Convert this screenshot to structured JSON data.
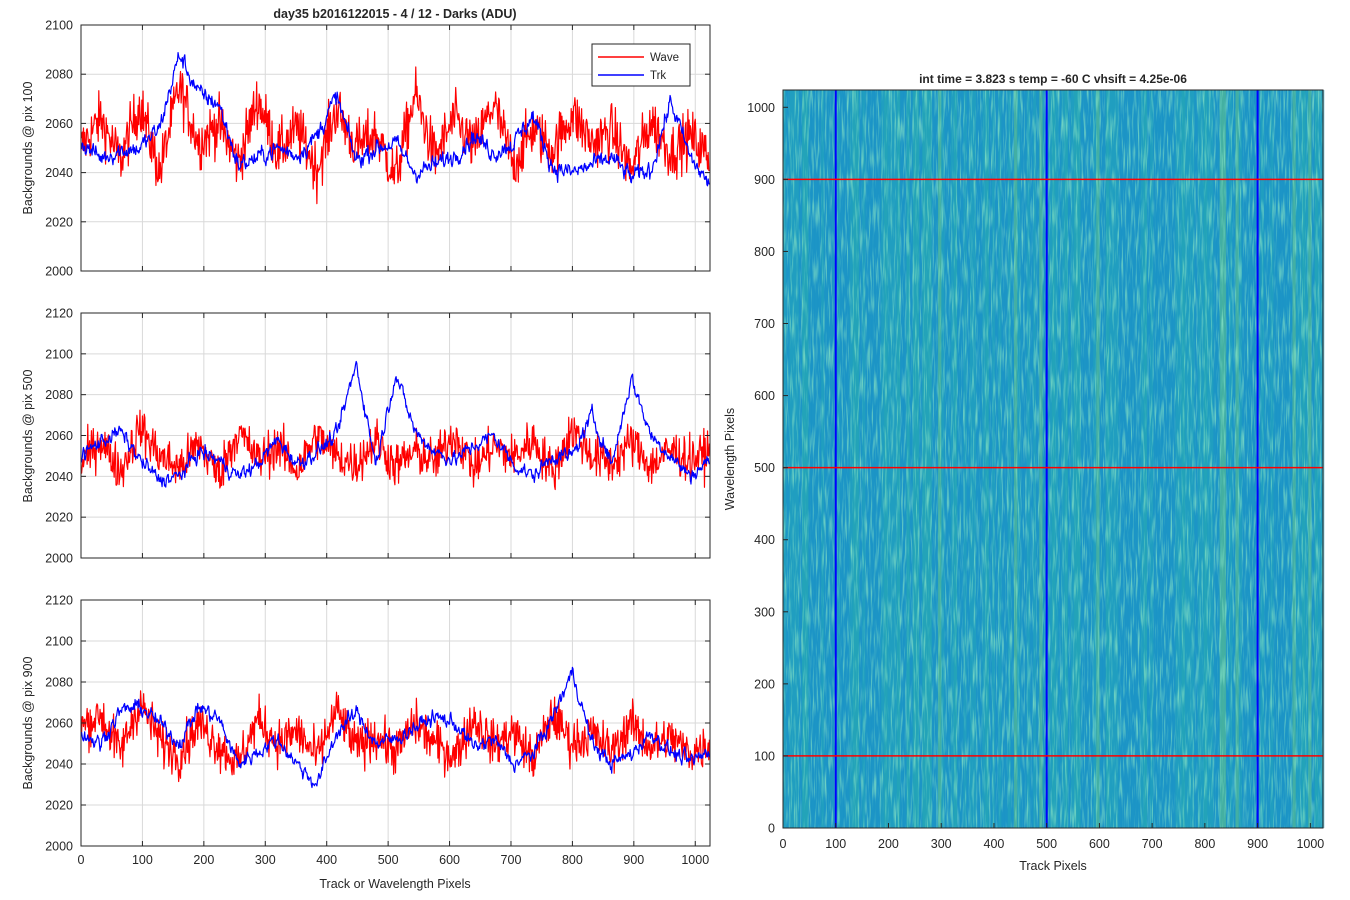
{
  "figure": {
    "background": "#ffffff",
    "colors": {
      "wave": "#ff0000",
      "trk": "#0000ff",
      "grid": "#d9d9d9",
      "axis": "#262626"
    }
  },
  "chart_data": [
    {
      "type": "line",
      "title": "day35 b2016122015 - 4 / 12 - Darks (ADU)",
      "xlabel": "",
      "ylabel": "Backgrounds @ pix 100",
      "xlim": [
        0,
        1024
      ],
      "ylim": [
        2000,
        2100
      ],
      "xticks": [
        0,
        100,
        200,
        300,
        400,
        500,
        600,
        700,
        800,
        900,
        1000
      ],
      "xtick_labels": [
        "",
        "",
        "",
        "",
        "",
        "",
        "",
        "",
        "",
        "",
        ""
      ],
      "yticks": [
        2000,
        2020,
        2040,
        2060,
        2080,
        2100
      ],
      "ytick_labels": [
        "2000",
        "2020",
        "2040",
        "2060",
        "2080",
        "2100"
      ],
      "grid": true,
      "legend": {
        "position": "top-right",
        "entries": [
          "Wave",
          "Trk"
        ]
      },
      "series": [
        {
          "name": "Wave",
          "color": "#ff0000",
          "x": [
            0,
            32,
            64,
            96,
            128,
            160,
            192,
            224,
            256,
            288,
            320,
            352,
            384,
            416,
            448,
            480,
            512,
            544,
            576,
            608,
            640,
            672,
            704,
            736,
            768,
            800,
            832,
            864,
            896,
            928,
            960,
            992,
            1023
          ],
          "y": [
            2050,
            2062,
            2045,
            2068,
            2040,
            2075,
            2052,
            2060,
            2044,
            2070,
            2048,
            2058,
            2041,
            2066,
            2050,
            2056,
            2038,
            2072,
            2046,
            2062,
            2050,
            2068,
            2043,
            2058,
            2049,
            2064,
            2052,
            2057,
            2041,
            2061,
            2048,
            2055,
            2046
          ]
        },
        {
          "name": "Trk",
          "color": "#0000ff",
          "x": [
            0,
            32,
            64,
            96,
            128,
            160,
            192,
            224,
            256,
            288,
            320,
            352,
            384,
            416,
            448,
            480,
            512,
            544,
            576,
            608,
            640,
            672,
            704,
            736,
            768,
            800,
            832,
            864,
            896,
            928,
            960,
            992,
            1023
          ],
          "y": [
            2052,
            2046,
            2049,
            2050,
            2058,
            2088,
            2072,
            2068,
            2043,
            2046,
            2050,
            2047,
            2055,
            2071,
            2045,
            2050,
            2052,
            2040,
            2043,
            2047,
            2055,
            2048,
            2052,
            2063,
            2042,
            2040,
            2043,
            2046,
            2038,
            2041,
            2069,
            2046,
            2035
          ]
        }
      ]
    },
    {
      "type": "line",
      "title": "",
      "xlabel": "",
      "ylabel": "Backgrounds @ pix 500",
      "xlim": [
        0,
        1024
      ],
      "ylim": [
        2000,
        2120
      ],
      "xticks": [
        0,
        100,
        200,
        300,
        400,
        500,
        600,
        700,
        800,
        900,
        1000
      ],
      "xtick_labels": [
        "",
        "",
        "",
        "",
        "",
        "",
        "",
        "",
        "",
        "",
        ""
      ],
      "yticks": [
        2000,
        2020,
        2040,
        2060,
        2080,
        2100,
        2120
      ],
      "ytick_labels": [
        "2000",
        "2020",
        "2040",
        "2060",
        "2080",
        "2100",
        "2120"
      ],
      "grid": true,
      "series": [
        {
          "name": "Wave",
          "color": "#ff0000",
          "x": [
            0,
            32,
            64,
            96,
            128,
            160,
            192,
            224,
            256,
            288,
            320,
            352,
            384,
            416,
            448,
            480,
            512,
            544,
            576,
            608,
            640,
            672,
            704,
            736,
            768,
            800,
            832,
            864,
            896,
            928,
            960,
            992,
            1023
          ],
          "y": [
            2046,
            2058,
            2042,
            2064,
            2050,
            2044,
            2056,
            2041,
            2062,
            2048,
            2055,
            2043,
            2060,
            2050,
            2046,
            2058,
            2045,
            2052,
            2047,
            2061,
            2044,
            2055,
            2049,
            2058,
            2042,
            2063,
            2050,
            2046,
            2057,
            2045,
            2053,
            2048,
            2052
          ]
        },
        {
          "name": "Trk",
          "color": "#0000ff",
          "x": [
            0,
            32,
            64,
            96,
            128,
            160,
            192,
            224,
            256,
            288,
            320,
            352,
            384,
            416,
            448,
            480,
            512,
            544,
            576,
            608,
            640,
            672,
            704,
            736,
            768,
            800,
            832,
            864,
            896,
            928,
            960,
            992,
            1023
          ],
          "y": [
            2050,
            2057,
            2062,
            2048,
            2038,
            2040,
            2052,
            2048,
            2040,
            2046,
            2058,
            2046,
            2052,
            2060,
            2095,
            2046,
            2090,
            2062,
            2052,
            2048,
            2055,
            2060,
            2046,
            2040,
            2050,
            2050,
            2070,
            2046,
            2088,
            2060,
            2050,
            2040,
            2048
          ]
        }
      ]
    },
    {
      "type": "line",
      "title": "",
      "xlabel": "Track or Wavelength Pixels",
      "ylabel": "Backgrounds @ pix 900",
      "xlim": [
        0,
        1024
      ],
      "ylim": [
        2000,
        2120
      ],
      "xticks": [
        0,
        100,
        200,
        300,
        400,
        500,
        600,
        700,
        800,
        900,
        1000
      ],
      "xtick_labels": [
        "0",
        "100",
        "200",
        "300",
        "400",
        "500",
        "600",
        "700",
        "800",
        "900",
        "1000"
      ],
      "yticks": [
        2000,
        2020,
        2040,
        2060,
        2080,
        2100,
        2120
      ],
      "ytick_labels": [
        "2000",
        "2020",
        "2040",
        "2060",
        "2080",
        "2100",
        "2120"
      ],
      "grid": true,
      "series": [
        {
          "name": "Wave",
          "color": "#ff0000",
          "x": [
            0,
            32,
            64,
            96,
            128,
            160,
            192,
            224,
            256,
            288,
            320,
            352,
            384,
            416,
            448,
            480,
            512,
            544,
            576,
            608,
            640,
            672,
            704,
            736,
            768,
            800,
            832,
            864,
            896,
            928,
            960,
            992,
            1023
          ],
          "y": [
            2058,
            2064,
            2046,
            2070,
            2052,
            2044,
            2060,
            2049,
            2040,
            2062,
            2050,
            2056,
            2043,
            2066,
            2048,
            2054,
            2046,
            2060,
            2050,
            2044,
            2062,
            2049,
            2056,
            2042,
            2064,
            2050,
            2055,
            2046,
            2060,
            2048,
            2053,
            2045,
            2050
          ]
        },
        {
          "name": "Trk",
          "color": "#0000ff",
          "x": [
            0,
            32,
            64,
            96,
            128,
            160,
            192,
            224,
            256,
            288,
            320,
            352,
            384,
            416,
            448,
            480,
            512,
            544,
            576,
            608,
            640,
            672,
            704,
            736,
            768,
            800,
            832,
            864,
            896,
            928,
            960,
            992,
            1023
          ],
          "y": [
            2055,
            2050,
            2066,
            2068,
            2060,
            2050,
            2068,
            2062,
            2040,
            2046,
            2052,
            2040,
            2030,
            2055,
            2065,
            2050,
            2052,
            2058,
            2063,
            2060,
            2048,
            2052,
            2040,
            2045,
            2063,
            2085,
            2050,
            2040,
            2045,
            2055,
            2046,
            2041,
            2046
          ]
        }
      ]
    },
    {
      "type": "heatmap",
      "title": "int time = 3.823 s   temp = -60 C   vhsift = 4.25e-06",
      "xlabel": "Track Pixels",
      "ylabel": "Wavelength Pixels",
      "xlim": [
        0,
        1024
      ],
      "ylim": [
        0,
        1024
      ],
      "xticks": [
        0,
        100,
        200,
        300,
        400,
        500,
        600,
        700,
        800,
        900,
        1000
      ],
      "xtick_labels": [
        "0",
        "100",
        "200",
        "300",
        "400",
        "500",
        "600",
        "700",
        "800",
        "900",
        "1000"
      ],
      "yticks": [
        0,
        100,
        200,
        300,
        400,
        500,
        600,
        700,
        800,
        900,
        1000
      ],
      "ytick_labels": [
        "0",
        "100",
        "200",
        "300",
        "400",
        "500",
        "600",
        "700",
        "800",
        "900",
        "1000"
      ],
      "colormap": [
        "#1a8fc9",
        "#21a0bd",
        "#27aab0",
        "#5fbf8a"
      ],
      "vertical_lines": {
        "x": [
          100,
          500,
          900
        ],
        "color": "#0000ff"
      },
      "horizontal_lines": {
        "y": [
          100,
          500,
          900
        ],
        "color": "#ff0000"
      }
    }
  ]
}
